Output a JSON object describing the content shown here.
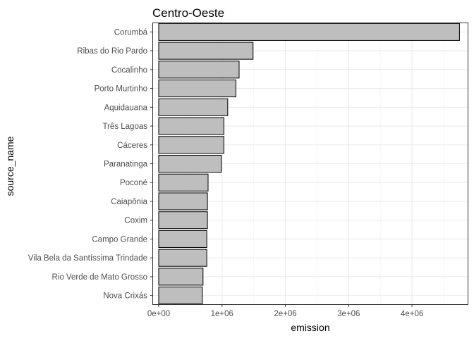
{
  "chart_data": {
    "type": "bar",
    "orientation": "horizontal",
    "title": "Centro-Oeste",
    "xlabel": "emission",
    "ylabel": "source_name",
    "categories": [
      "Corumbá",
      "Ribas do Rio Pardo",
      "Cocalinho",
      "Porto Murtinho",
      "Aquidauana",
      "Três Lagoas",
      "Cáceres",
      "Paranatinga",
      "Poconé",
      "Caiapônia",
      "Coxim",
      "Campo Grande",
      "Vila Bela da Santíssima Trindade",
      "Rio Verde de Mato Grosso",
      "Nova Crixás"
    ],
    "values": [
      4750000,
      1490000,
      1270000,
      1220000,
      1090000,
      1030000,
      1030000,
      990000,
      780000,
      770000,
      770000,
      760000,
      760000,
      700000,
      690000
    ],
    "xlim": [
      -100000,
      4890000
    ],
    "xticks": [
      0,
      1000000,
      2000000,
      3000000,
      4000000
    ],
    "xtick_labels": [
      "0e+00",
      "1e+06",
      "2e+06",
      "3e+06",
      "4e+06"
    ],
    "grid": true,
    "bar_color": "#bebebe",
    "bar_border": "#000000"
  }
}
